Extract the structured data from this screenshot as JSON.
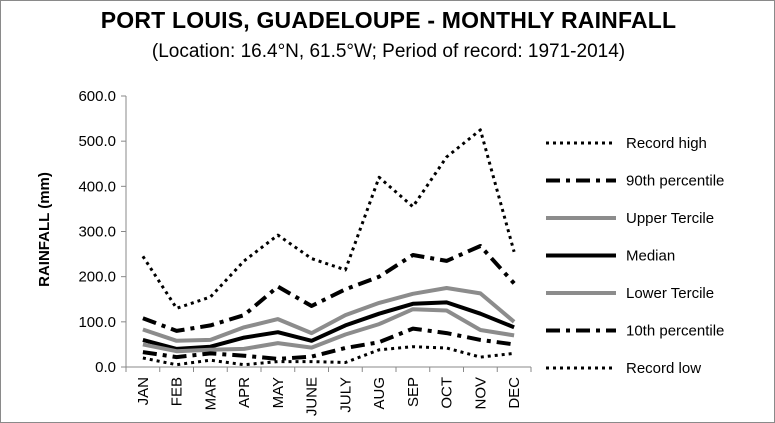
{
  "chart_data": {
    "type": "line",
    "title": "PORT LOUIS, GUADELOUPE - MONTHLY RAINFALL",
    "subtitle": "(Location: 16.4°N, 61.5°W; Period of record: 1971-2014)",
    "xlabel": "",
    "ylabel": "RAINFALL (mm)",
    "ylim": [
      0,
      600
    ],
    "yticks": [
      "0.0",
      "100.0",
      "200.0",
      "300.0",
      "400.0",
      "500.0",
      "600.0"
    ],
    "categories": [
      "JAN",
      "FEB",
      "MAR",
      "APR",
      "MAY",
      "JUNE",
      "JULY",
      "AUG",
      "SEP",
      "OCT",
      "NOV",
      "DEC"
    ],
    "grid": false,
    "legend_position": "right",
    "series": [
      {
        "name": "Record high",
        "style": "dotted",
        "color": "#000000",
        "width": 3,
        "values": [
          245,
          130,
          155,
          235,
          292,
          240,
          215,
          420,
          355,
          465,
          525,
          255
        ]
      },
      {
        "name": "90th percentile",
        "style": "dashdot",
        "color": "#000000",
        "width": 4,
        "values": [
          108,
          80,
          92,
          115,
          178,
          135,
          172,
          200,
          248,
          235,
          268,
          185
        ]
      },
      {
        "name": "Upper Tercile",
        "style": "solid",
        "color": "#8c8c8c",
        "width": 4,
        "values": [
          83,
          58,
          60,
          88,
          106,
          75,
          115,
          142,
          162,
          175,
          163,
          100
        ]
      },
      {
        "name": "Median",
        "style": "solid",
        "color": "#000000",
        "width": 4,
        "values": [
          60,
          40,
          45,
          65,
          77,
          58,
          92,
          118,
          140,
          143,
          118,
          88
        ]
      },
      {
        "name": "Lower Tercile",
        "style": "solid",
        "color": "#8c8c8c",
        "width": 4,
        "values": [
          50,
          35,
          38,
          40,
          53,
          43,
          72,
          95,
          128,
          125,
          82,
          70
        ]
      },
      {
        "name": "10th percentile",
        "style": "dashdot",
        "color": "#000000",
        "width": 4,
        "values": [
          33,
          22,
          30,
          25,
          18,
          23,
          42,
          55,
          85,
          75,
          60,
          50
        ]
      },
      {
        "name": "Record low",
        "style": "dotted",
        "color": "#000000",
        "width": 3,
        "values": [
          20,
          5,
          15,
          5,
          12,
          12,
          10,
          38,
          45,
          42,
          22,
          30
        ]
      }
    ]
  }
}
